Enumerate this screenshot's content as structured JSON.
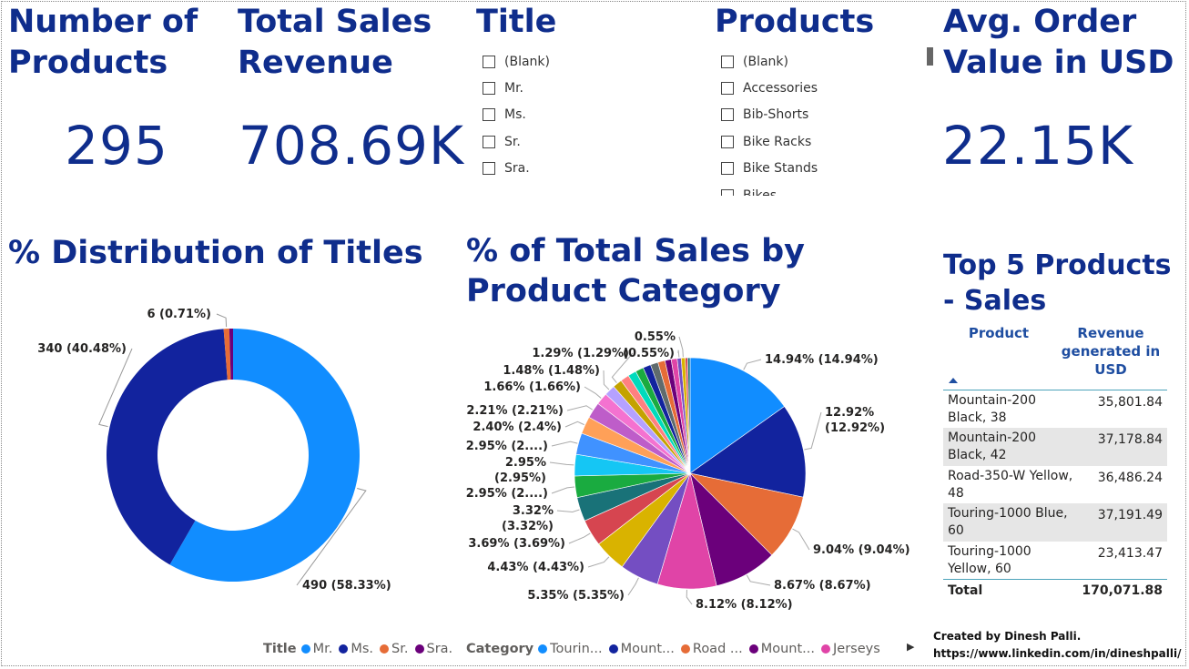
{
  "kpis": {
    "num_products": {
      "title": "Number of Products",
      "value": "295"
    },
    "total_sales": {
      "title": "Total Sales Revenue",
      "value": "708.69K"
    },
    "avg_order": {
      "title": "Avg. Order Value in USD",
      "value": "22.15K"
    }
  },
  "title_slicer": {
    "title": "Title",
    "items": [
      "(Blank)",
      "Mr.",
      "Ms.",
      "Sr.",
      "Sra."
    ]
  },
  "product_slicer": {
    "title": "Products",
    "items": [
      "(Blank)",
      "Accessories",
      "Bib-Shorts",
      "Bike Racks",
      "Bike Stands",
      "Bikes"
    ]
  },
  "colors": {
    "accent_title": "#0f2d8c",
    "mr": "#118dff",
    "ms": "#12239e",
    "sr": "#e66c37",
    "sra": "#6b007b",
    "table_rule": "#4da3ba"
  },
  "chart_data": [
    {
      "type": "pie",
      "variant": "donut",
      "title": "% Distribution of Titles",
      "series": [
        {
          "name": "Mr.",
          "value": 490,
          "label": "490 (58.33%)",
          "color": "#118dff"
        },
        {
          "name": "Ms.",
          "value": 340,
          "label": "340 (40.48%)",
          "color": "#12239e"
        },
        {
          "name": "Sr.",
          "value": 6,
          "label": "6 (0.71%)",
          "color": "#e66c37"
        },
        {
          "name": "Sra.",
          "value": 4,
          "label": "",
          "color": "#6b007b"
        }
      ],
      "legend": {
        "title": "Title",
        "items": [
          "Mr.",
          "Ms.",
          "Sr.",
          "Sra."
        ],
        "placement": "bottom"
      }
    },
    {
      "type": "pie",
      "title": "% of Total Sales by Product Category",
      "series": [
        {
          "name": "Touring",
          "value": 14.94,
          "label": "14.94% (14.94%)",
          "color": "#118dff"
        },
        {
          "name": "Mountain",
          "value": 12.92,
          "label": "12.92%\n(12.92%)",
          "color": "#12239e"
        },
        {
          "name": "Road",
          "value": 9.04,
          "label": "9.04% (9.04%)",
          "color": "#e66c37"
        },
        {
          "name": "Mountain",
          "value": 8.67,
          "label": "8.67% (8.67%)",
          "color": "#6b007b"
        },
        {
          "name": "Jerseys",
          "value": 8.12,
          "label": "8.12% (8.12%)",
          "color": "#e044a7"
        },
        {
          "name": "",
          "value": 5.35,
          "label": "5.35% (5.35%)",
          "color": "#744ec2"
        },
        {
          "name": "",
          "value": 4.43,
          "label": "4.43% (4.43%)",
          "color": "#d9b300"
        },
        {
          "name": "",
          "value": 3.69,
          "label": "3.69% (3.69%)",
          "color": "#d64550"
        },
        {
          "name": "",
          "value": 3.32,
          "label": "3.32%\n(3.32%)",
          "color": "#197278"
        },
        {
          "name": "",
          "value": 2.95,
          "label": "2.95% (2....)",
          "color": "#1aab40"
        },
        {
          "name": "",
          "value": 2.95,
          "label": "2.95%\n(2.95%)",
          "color": "#15c6f4"
        },
        {
          "name": "",
          "value": 2.95,
          "label": "2.95% (2....)",
          "color": "#4092ff"
        },
        {
          "name": "",
          "value": 2.4,
          "label": "2.40% (2.4%)",
          "color": "#ffa058"
        },
        {
          "name": "",
          "value": 2.21,
          "label": "2.21% (2.21%)",
          "color": "#be5dc9"
        },
        {
          "name": "",
          "value": 1.66,
          "label": "1.66% (1.66%)",
          "color": "#f472d0"
        },
        {
          "name": "",
          "value": 1.48,
          "label": "1.48% (1.48%)",
          "color": "#b5a1ff"
        },
        {
          "name": "",
          "value": 1.29,
          "label": "1.29% (1.29%)",
          "color": "#c4a200"
        },
        {
          "name": "",
          "value": 1.2,
          "label": "",
          "color": "#ff8080"
        },
        {
          "name": "",
          "value": 1.15,
          "label": "",
          "color": "#00dbbc"
        },
        {
          "name": "",
          "value": 1.12,
          "label": "",
          "color": "#1aab40"
        },
        {
          "name": "",
          "value": 1.08,
          "label": "",
          "color": "#12239e"
        },
        {
          "name": "",
          "value": 1.05,
          "label": "",
          "color": "#5f6b6d"
        },
        {
          "name": "",
          "value": 0.98,
          "label": "",
          "color": "#e66c37"
        },
        {
          "name": "",
          "value": 0.86,
          "label": "",
          "color": "#6b007b"
        },
        {
          "name": "",
          "value": 0.82,
          "label": "",
          "color": "#e044a7"
        },
        {
          "name": "",
          "value": 0.55,
          "label": "(0.55%)",
          "color": "#744ec2"
        },
        {
          "name": "",
          "value": 0.55,
          "label": "0.55%",
          "color": "#d9b300"
        },
        {
          "name": "",
          "value": 0.33,
          "label": "",
          "color": "#d64550"
        },
        {
          "name": "",
          "value": 0.33,
          "label": "",
          "color": "#197278"
        }
      ],
      "legend": {
        "title": "Category",
        "items": [
          "Tourin...",
          "Mount...",
          "Road ...",
          "Mount...",
          "Jerseys"
        ],
        "placement": "bottom"
      }
    },
    {
      "type": "table",
      "title": "Top 5 Products - Sales",
      "columns": [
        "Product",
        "Revenue generated in USD"
      ],
      "rows": [
        [
          "Mountain-200 Black, 38",
          "35,801.84"
        ],
        [
          "Mountain-200 Black, 42",
          "37,178.84"
        ],
        [
          "Road-350-W Yellow, 48",
          "36,486.24"
        ],
        [
          "Touring-1000 Blue, 60",
          "37,191.49"
        ],
        [
          "Touring-1000 Yellow, 60",
          "23,413.47"
        ]
      ],
      "total": [
        "Total",
        "170,071.88"
      ]
    }
  ],
  "credit": {
    "line1": "Created by Dinesh Palli.",
    "line2": "https://www.linkedin.com/in/dineshpalli/"
  }
}
